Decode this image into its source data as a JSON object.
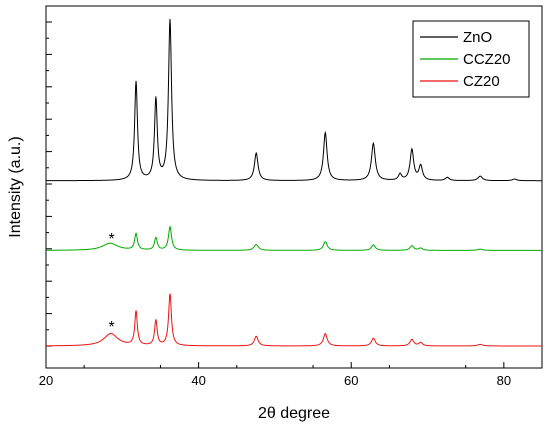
{
  "chart_data": {
    "type": "line",
    "title": "",
    "xlabel": "2θ degree",
    "ylabel": "Intensity (a.u.)",
    "xlim": [
      20,
      85
    ],
    "ylim": [
      0,
      10
    ],
    "x_ticks": [
      20,
      40,
      60,
      80
    ],
    "y_tick_labels": false,
    "grid": false,
    "legend": {
      "position": "top-right"
    },
    "series": [
      {
        "name": "ZnO",
        "color": "#000000",
        "baseline": 5.1,
        "peaks": [
          {
            "x": 31.8,
            "h": 3.05,
            "w": 0.22
          },
          {
            "x": 34.4,
            "h": 2.5,
            "w": 0.22
          },
          {
            "x": 36.25,
            "h": 4.95,
            "w": 0.24
          },
          {
            "x": 47.55,
            "h": 0.85,
            "w": 0.28
          },
          {
            "x": 56.6,
            "h": 1.48,
            "w": 0.28
          },
          {
            "x": 62.9,
            "h": 1.15,
            "w": 0.3
          },
          {
            "x": 66.4,
            "h": 0.19,
            "w": 0.25
          },
          {
            "x": 67.95,
            "h": 0.95,
            "w": 0.28
          },
          {
            "x": 69.1,
            "h": 0.45,
            "w": 0.28
          },
          {
            "x": 72.6,
            "h": 0.1,
            "w": 0.3
          },
          {
            "x": 76.9,
            "h": 0.14,
            "w": 0.35
          },
          {
            "x": 81.4,
            "h": 0.05,
            "w": 0.35
          }
        ]
      },
      {
        "name": "CCZ20",
        "color": "#00aa00",
        "baseline": 2.95,
        "peaks": [
          {
            "x": 28.4,
            "h": 0.22,
            "w": 1.2
          },
          {
            "x": 31.8,
            "h": 0.5,
            "w": 0.22
          },
          {
            "x": 34.4,
            "h": 0.38,
            "w": 0.22
          },
          {
            "x": 36.25,
            "h": 0.72,
            "w": 0.24
          },
          {
            "x": 47.55,
            "h": 0.18,
            "w": 0.35
          },
          {
            "x": 56.6,
            "h": 0.27,
            "w": 0.3
          },
          {
            "x": 62.9,
            "h": 0.17,
            "w": 0.3
          },
          {
            "x": 67.95,
            "h": 0.14,
            "w": 0.3
          },
          {
            "x": 69.1,
            "h": 0.07,
            "w": 0.3
          },
          {
            "x": 76.9,
            "h": 0.04,
            "w": 0.4
          }
        ]
      },
      {
        "name": "CZ20",
        "color": "#ee1111",
        "baseline": 0.0,
        "peaks": [
          {
            "x": 28.5,
            "h": 0.38,
            "w": 1.1
          },
          {
            "x": 31.8,
            "h": 1.05,
            "w": 0.2
          },
          {
            "x": 34.4,
            "h": 0.78,
            "w": 0.2
          },
          {
            "x": 36.25,
            "h": 1.6,
            "w": 0.22
          },
          {
            "x": 47.55,
            "h": 0.3,
            "w": 0.3
          },
          {
            "x": 56.6,
            "h": 0.38,
            "w": 0.3
          },
          {
            "x": 62.9,
            "h": 0.24,
            "w": 0.3
          },
          {
            "x": 67.95,
            "h": 0.2,
            "w": 0.3
          },
          {
            "x": 69.1,
            "h": 0.1,
            "w": 0.3
          },
          {
            "x": 76.9,
            "h": 0.05,
            "w": 0.4
          }
        ]
      }
    ],
    "annotations": [
      {
        "text": "*",
        "x": 28.6,
        "y": 3.45
      },
      {
        "text": "*",
        "x": 28.6,
        "y": 0.74
      }
    ]
  }
}
